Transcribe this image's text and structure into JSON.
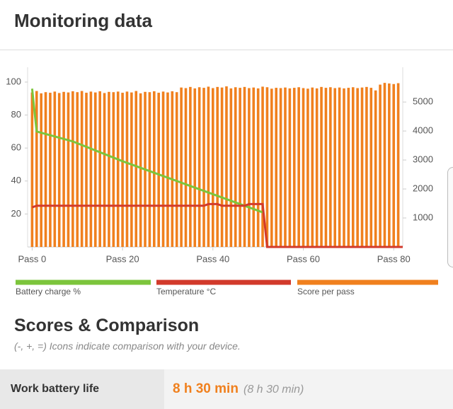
{
  "header": {
    "title": "Monitoring data"
  },
  "chart_data": {
    "type": "combo",
    "xlim": [
      -1,
      82
    ],
    "ylim": [
      0,
      109
    ],
    "y2lim": [
      0,
      6200
    ],
    "xticks": [
      {
        "value": 0,
        "label": "Pass 0"
      },
      {
        "value": 20,
        "label": "Pass 20"
      },
      {
        "value": 40,
        "label": "Pass 40"
      },
      {
        "value": 60,
        "label": "Pass 60"
      },
      {
        "value": 80,
        "label": "Pass 80"
      }
    ],
    "yticks": [
      20,
      40,
      60,
      80,
      100
    ],
    "y2ticks": [
      1000,
      2000,
      3000,
      4000,
      5000
    ],
    "series": [
      {
        "name": "Battery charge %",
        "type": "line",
        "color": "#7cc53c",
        "x": [
          0,
          1,
          9,
          20,
          29,
          40,
          51
        ],
        "values": [
          96,
          70,
          64,
          52,
          43,
          32,
          21
        ]
      },
      {
        "name": "Temperature °C",
        "type": "line",
        "color": "#d23a2b",
        "x": [
          0,
          1,
          38,
          39,
          41,
          42,
          47,
          48,
          51,
          52,
          82
        ],
        "values": [
          24,
          25,
          25,
          26,
          26,
          25,
          25,
          26,
          26,
          0,
          0
        ]
      },
      {
        "name": "Score per pass",
        "type": "bar",
        "axis": "y2",
        "color": "#f0801e",
        "x": [
          0,
          1,
          2,
          3,
          4,
          5,
          6,
          7,
          8,
          9,
          10,
          11,
          12,
          13,
          14,
          15,
          16,
          17,
          18,
          19,
          20,
          21,
          22,
          23,
          24,
          25,
          26,
          27,
          28,
          29,
          30,
          31,
          32,
          33,
          34,
          35,
          36,
          37,
          38,
          39,
          40,
          41,
          42,
          43,
          44,
          45,
          46,
          47,
          48,
          49,
          50,
          51,
          52,
          53,
          54,
          55,
          56,
          57,
          58,
          59,
          60,
          61,
          62,
          63,
          64,
          65,
          66,
          67,
          68,
          69,
          70,
          71,
          72,
          73,
          74,
          75,
          76,
          77,
          78,
          79,
          80,
          81
        ],
        "values": [
          5330,
          5380,
          5300,
          5340,
          5320,
          5360,
          5310,
          5350,
          5330,
          5370,
          5340,
          5380,
          5320,
          5360,
          5330,
          5370,
          5310,
          5350,
          5340,
          5360,
          5320,
          5360,
          5330,
          5380,
          5300,
          5350,
          5340,
          5370,
          5320,
          5360,
          5330,
          5370,
          5340,
          5500,
          5480,
          5520,
          5470,
          5510,
          5490,
          5530,
          5480,
          5520,
          5500,
          5540,
          5470,
          5510,
          5490,
          5520,
          5480,
          5500,
          5470,
          5530,
          5510,
          5460,
          5490,
          5480,
          5500,
          5470,
          5490,
          5510,
          5480,
          5460,
          5500,
          5470,
          5520,
          5490,
          5510,
          5480,
          5500,
          5470,
          5490,
          5510,
          5480,
          5500,
          5520,
          5490,
          5400,
          5600,
          5660,
          5640,
          5620,
          5650
        ]
      }
    ]
  },
  "section": {
    "title": "Scores & Comparison",
    "subtitle": "(-, +, =) Icons indicate comparison with your device."
  },
  "result": {
    "label": "Work battery life",
    "value": "8 h 30 min",
    "comparison": "(8 h 30 min)"
  }
}
